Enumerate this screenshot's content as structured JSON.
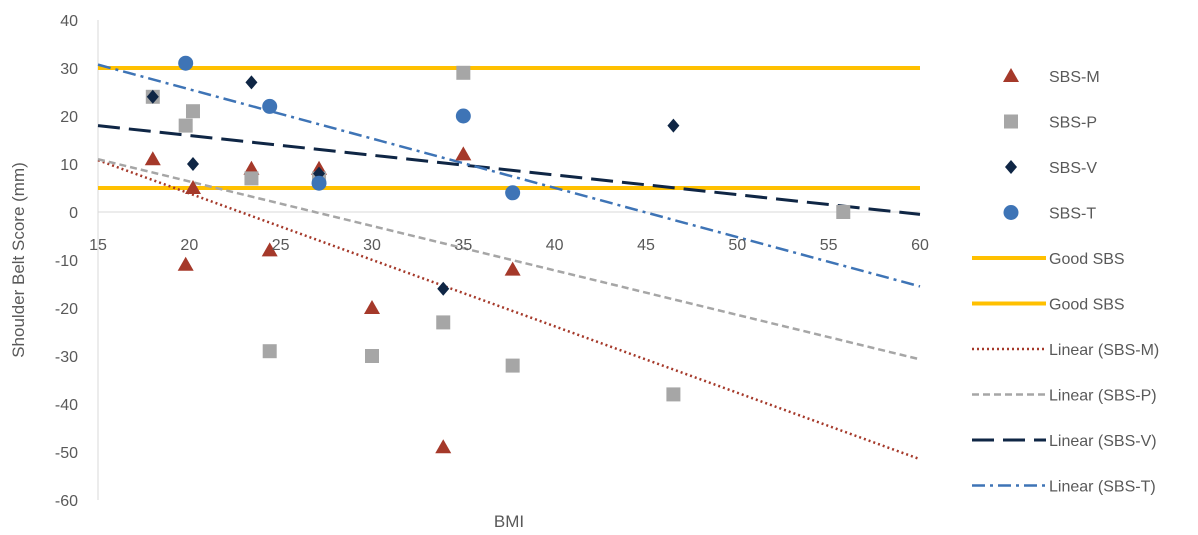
{
  "chart_data": {
    "type": "scatter",
    "xlabel": "BMI",
    "ylabel": "Shoulder Belt Score (mm)",
    "xlim": [
      15,
      60
    ],
    "ylim": [
      -60,
      40
    ],
    "x_ticks": [
      15,
      20,
      25,
      30,
      35,
      40,
      45,
      50,
      55,
      60
    ],
    "y_ticks": [
      40,
      30,
      20,
      10,
      0,
      -10,
      -20,
      -30,
      -40,
      -50,
      -60
    ],
    "grid": false,
    "legend_position": "right",
    "series": [
      {
        "name": "SBS-M",
        "marker": "triangle",
        "color": "#A5392A",
        "points": [
          [
            18,
            11
          ],
          [
            19.8,
            -11
          ],
          [
            20.2,
            5
          ],
          [
            23.4,
            9
          ],
          [
            24.4,
            -8
          ],
          [
            27.1,
            9
          ],
          [
            30,
            -20
          ],
          [
            33.9,
            -49
          ],
          [
            35,
            12
          ],
          [
            37.7,
            -12
          ]
        ]
      },
      {
        "name": "SBS-P",
        "marker": "square",
        "color": "#A6A6A6",
        "points": [
          [
            18,
            24
          ],
          [
            19.8,
            18
          ],
          [
            20.2,
            21
          ],
          [
            23.4,
            7
          ],
          [
            24.4,
            -29
          ],
          [
            27.1,
            7
          ],
          [
            30,
            -30
          ],
          [
            33.9,
            -23
          ],
          [
            35,
            29
          ],
          [
            37.7,
            -32
          ],
          [
            46.5,
            -38
          ],
          [
            55.8,
            0
          ]
        ]
      },
      {
        "name": "SBS-V",
        "marker": "diamond",
        "color": "#0F2645",
        "points": [
          [
            18,
            24
          ],
          [
            20.2,
            10
          ],
          [
            23.4,
            27
          ],
          [
            27.1,
            8
          ],
          [
            33.9,
            -16
          ],
          [
            46.5,
            18
          ]
        ]
      },
      {
        "name": "SBS-T",
        "marker": "circle",
        "color": "#3E74B6",
        "points": [
          [
            19.8,
            31
          ],
          [
            24.4,
            22
          ],
          [
            27.1,
            6
          ],
          [
            35,
            20
          ],
          [
            37.7,
            4
          ]
        ]
      }
    ],
    "reference_lines": [
      {
        "name": "Good SBS",
        "y": 30,
        "color": "#FFC000"
      },
      {
        "name": "Good SBS",
        "y": 5,
        "color": "#FFC000"
      }
    ],
    "trendlines": [
      {
        "name": "Linear (SBS-M)",
        "style": "dotted",
        "color": "#A5392A",
        "from": [
          15,
          10.8
        ],
        "to": [
          60,
          -51.5
        ]
      },
      {
        "name": "Linear (SBS-P)",
        "style": "short-dash",
        "color": "#A6A6A6",
        "from": [
          15,
          11
        ],
        "to": [
          60,
          -30.7
        ]
      },
      {
        "name": "Linear (SBS-V)",
        "style": "long-dash",
        "color": "#0F2645",
        "from": [
          15,
          18
        ],
        "to": [
          60,
          -0.5
        ]
      },
      {
        "name": "Linear (SBS-T)",
        "style": "dash-dot",
        "color": "#3E74B6",
        "from": [
          15,
          30.7
        ],
        "to": [
          60,
          -15.5
        ]
      }
    ],
    "legend": [
      "SBS-M",
      "SBS-P",
      "SBS-V",
      "SBS-T",
      "Good SBS",
      "Good SBS",
      "Linear (SBS-M)",
      "Linear (SBS-P)",
      "Linear (SBS-V)",
      "Linear (SBS-T)"
    ]
  }
}
